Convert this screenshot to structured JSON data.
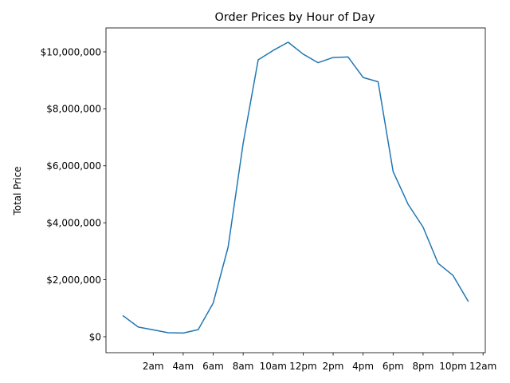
{
  "chart_data": {
    "type": "line",
    "title": "Order Prices by Hour of Day",
    "xlabel": "",
    "ylabel": "Total Price",
    "x": [
      0,
      1,
      2,
      3,
      4,
      5,
      6,
      7,
      8,
      9,
      10,
      11,
      12,
      13,
      14,
      15,
      16,
      17,
      18,
      19,
      20,
      21,
      22,
      23
    ],
    "series": [
      {
        "color": "#1f77b4",
        "values": [
          730000,
          340000,
          240000,
          140000,
          130000,
          250000,
          1180000,
          3150000,
          6800000,
          9720000,
          10050000,
          10340000,
          9920000,
          9620000,
          9800000,
          9820000,
          9100000,
          8950000,
          5800000,
          4650000,
          3850000,
          2580000,
          2150000,
          1250000
        ]
      }
    ],
    "xticks": [
      2,
      4,
      6,
      8,
      10,
      12,
      14,
      16,
      18,
      20,
      22,
      24
    ],
    "xtick_labels": [
      "2am",
      "4am",
      "6am",
      "8am",
      "10am",
      "12pm",
      "2pm",
      "4pm",
      "6pm",
      "8pm",
      "10pm",
      "12am"
    ],
    "yticks": [
      0,
      2000000,
      4000000,
      6000000,
      8000000,
      10000000
    ],
    "ytick_labels": [
      "$0",
      "$2,000,000",
      "$4,000,000",
      "$6,000,000",
      "$8,000,000",
      "$10,000,000"
    ],
    "xlim": [
      -1.15,
      24.15
    ],
    "ylim": [
      -560000,
      10840000
    ],
    "grid": false,
    "legend": "none"
  }
}
